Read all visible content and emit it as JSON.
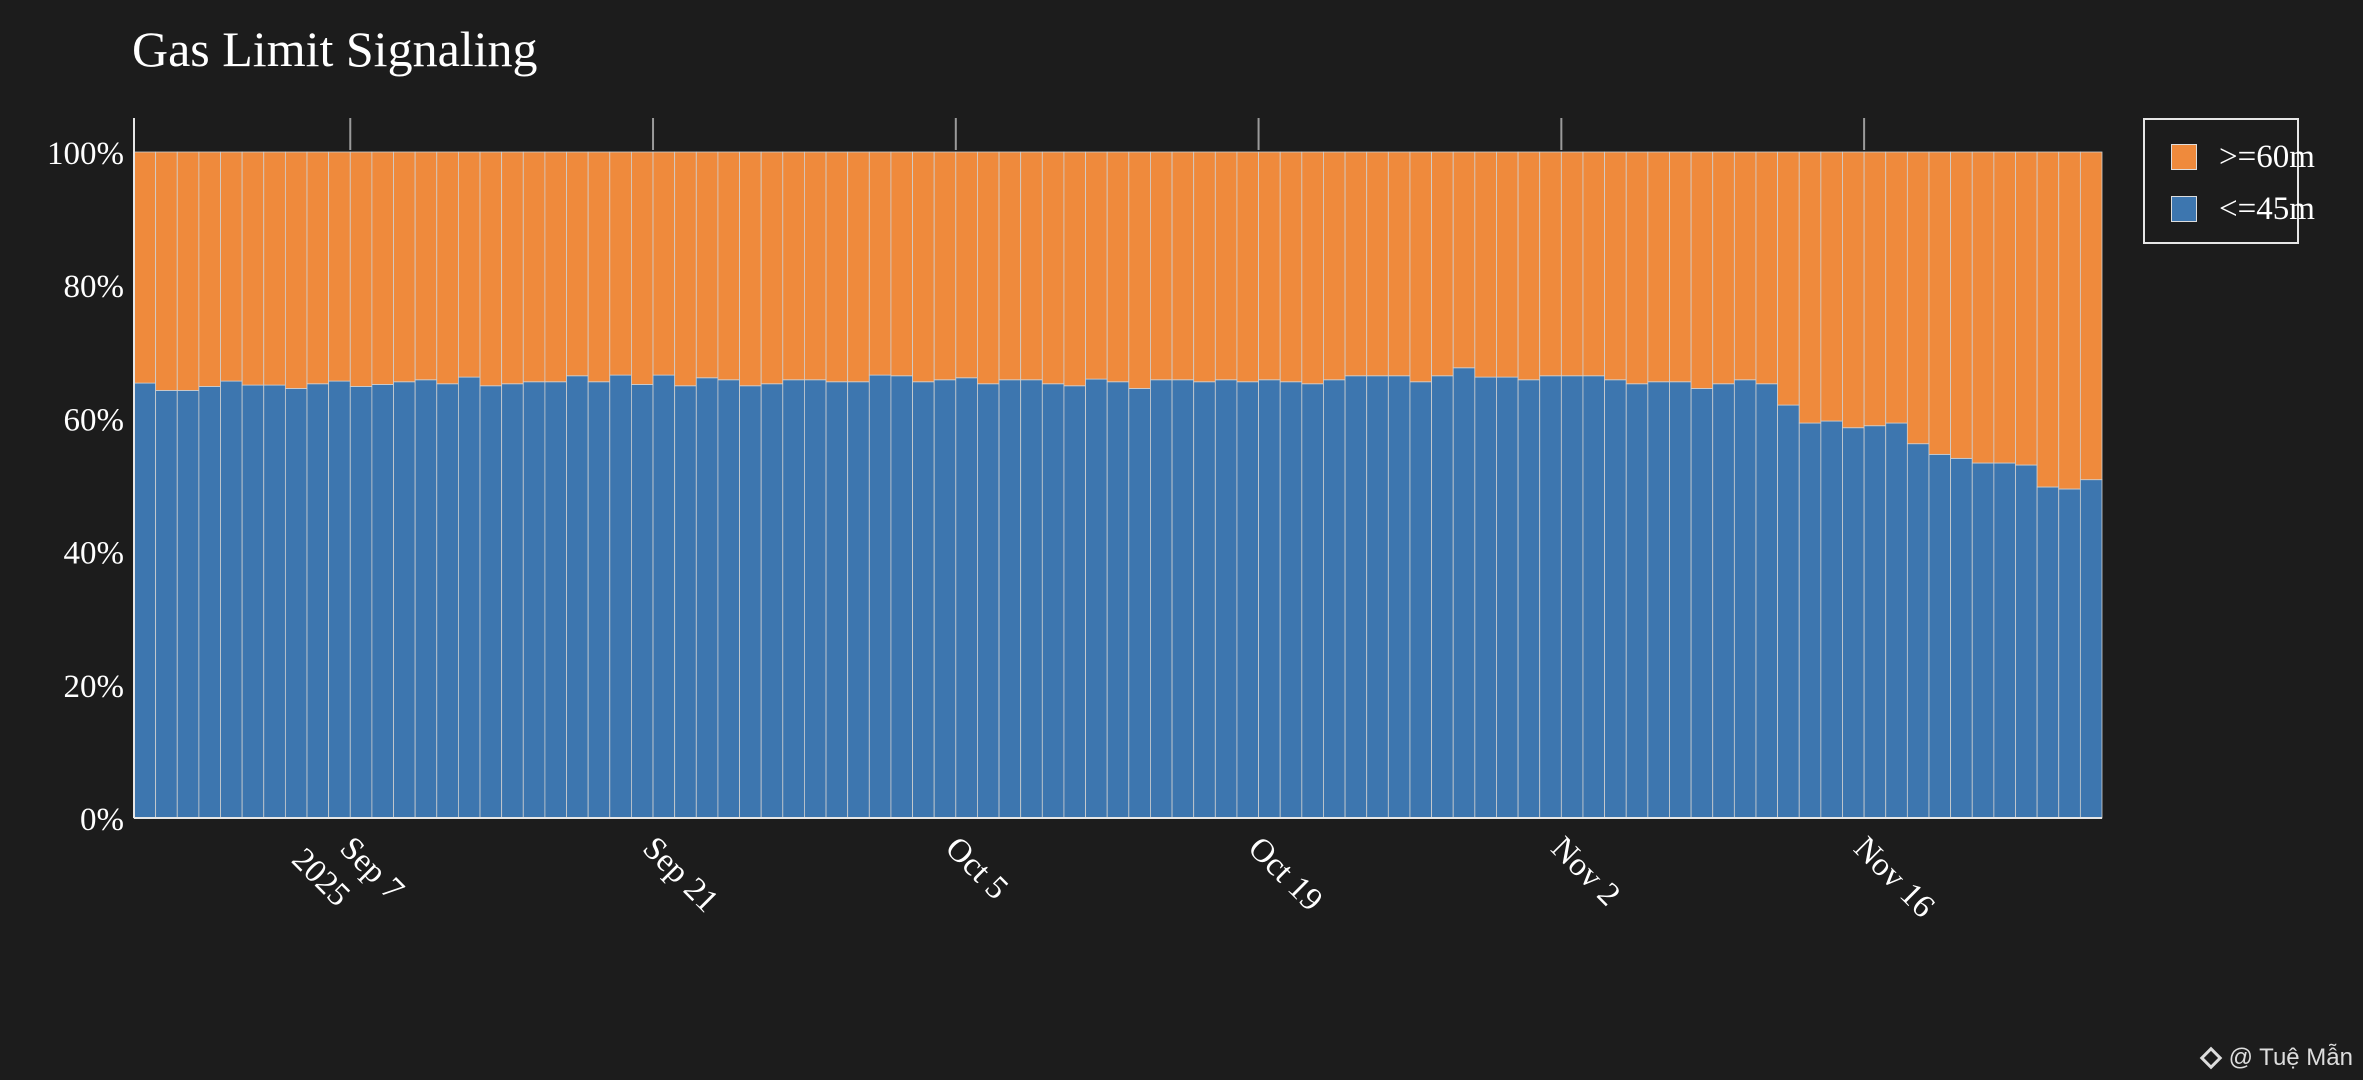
{
  "title": "Gas Limit Signaling",
  "watermark": "@ Tuệ Mẫn",
  "colors": {
    "background": "#1c1c1c",
    "high": "#ef8a3c",
    "low": "#3d76af",
    "text": "#ffffff"
  },
  "chart_data": {
    "type": "bar",
    "stacked": true,
    "title": "Gas Limit Signaling",
    "x_start": "2025-08-28",
    "x_step_days": 1,
    "ylim": [
      0,
      100
    ],
    "y_ticks": [
      "0%",
      "20%",
      "40%",
      "60%",
      "80%",
      "100%"
    ],
    "x_ticks": [
      {
        "date": "2025-09-07",
        "label": "Sep 7",
        "sublabel": "2025"
      },
      {
        "date": "2025-09-21",
        "label": "Sep 21",
        "sublabel": ""
      },
      {
        "date": "2025-10-05",
        "label": "Oct 5",
        "sublabel": ""
      },
      {
        "date": "2025-10-19",
        "label": "Oct 19",
        "sublabel": ""
      },
      {
        "date": "2025-11-02",
        "label": "Nov 2",
        "sublabel": ""
      },
      {
        "date": "2025-11-16",
        "label": "Nov 16",
        "sublabel": ""
      }
    ],
    "legend_position": "top-right",
    "series": [
      {
        "name": "<=45m",
        "color": "#3d76af",
        "values": [
          65.3,
          64.2,
          64.2,
          64.8,
          65.6,
          65.0,
          65.0,
          64.5,
          65.2,
          65.6,
          64.8,
          65.1,
          65.5,
          65.8,
          65.2,
          66.2,
          64.9,
          65.2,
          65.5,
          65.5,
          66.4,
          65.5,
          66.5,
          65.1,
          66.5,
          64.9,
          66.1,
          65.8,
          64.9,
          65.2,
          65.8,
          65.8,
          65.5,
          65.5,
          66.5,
          66.4,
          65.5,
          65.8,
          66.1,
          65.2,
          65.8,
          65.8,
          65.2,
          64.9,
          65.9,
          65.5,
          64.5,
          65.8,
          65.8,
          65.5,
          65.8,
          65.5,
          65.8,
          65.5,
          65.2,
          65.8,
          66.4,
          66.4,
          66.4,
          65.5,
          66.4,
          67.6,
          66.2,
          66.2,
          65.8,
          66.4,
          66.4,
          66.4,
          65.8,
          65.2,
          65.5,
          65.5,
          64.5,
          65.2,
          65.8,
          65.2,
          62.0,
          59.3,
          59.6,
          58.6,
          58.9,
          59.3,
          56.2,
          54.6,
          54.0,
          53.3,
          53.3,
          53.0,
          49.7,
          49.4,
          50.8
        ]
      },
      {
        "name": ">=60m",
        "color": "#ef8a3c",
        "values": [
          34.7,
          35.8,
          35.8,
          35.2,
          34.4,
          35.0,
          35.0,
          35.5,
          34.8,
          34.4,
          35.2,
          34.9,
          34.5,
          34.2,
          34.8,
          33.8,
          35.1,
          34.8,
          34.5,
          34.5,
          33.6,
          34.5,
          33.5,
          34.9,
          33.5,
          35.1,
          33.9,
          34.2,
          35.1,
          34.8,
          34.2,
          34.2,
          34.5,
          34.5,
          33.5,
          33.6,
          34.5,
          34.2,
          33.9,
          34.8,
          34.2,
          34.2,
          34.8,
          35.1,
          34.1,
          34.5,
          35.5,
          34.2,
          34.2,
          34.5,
          34.2,
          34.5,
          34.2,
          34.5,
          34.8,
          34.2,
          33.6,
          33.6,
          33.6,
          34.5,
          33.6,
          32.4,
          33.8,
          33.8,
          34.2,
          33.6,
          33.6,
          33.6,
          34.2,
          34.8,
          34.5,
          34.5,
          35.5,
          34.8,
          34.2,
          34.8,
          38.0,
          40.7,
          40.4,
          41.4,
          41.1,
          40.7,
          43.8,
          45.4,
          46.0,
          46.7,
          46.7,
          47.0,
          50.3,
          50.6,
          49.2
        ]
      }
    ]
  }
}
